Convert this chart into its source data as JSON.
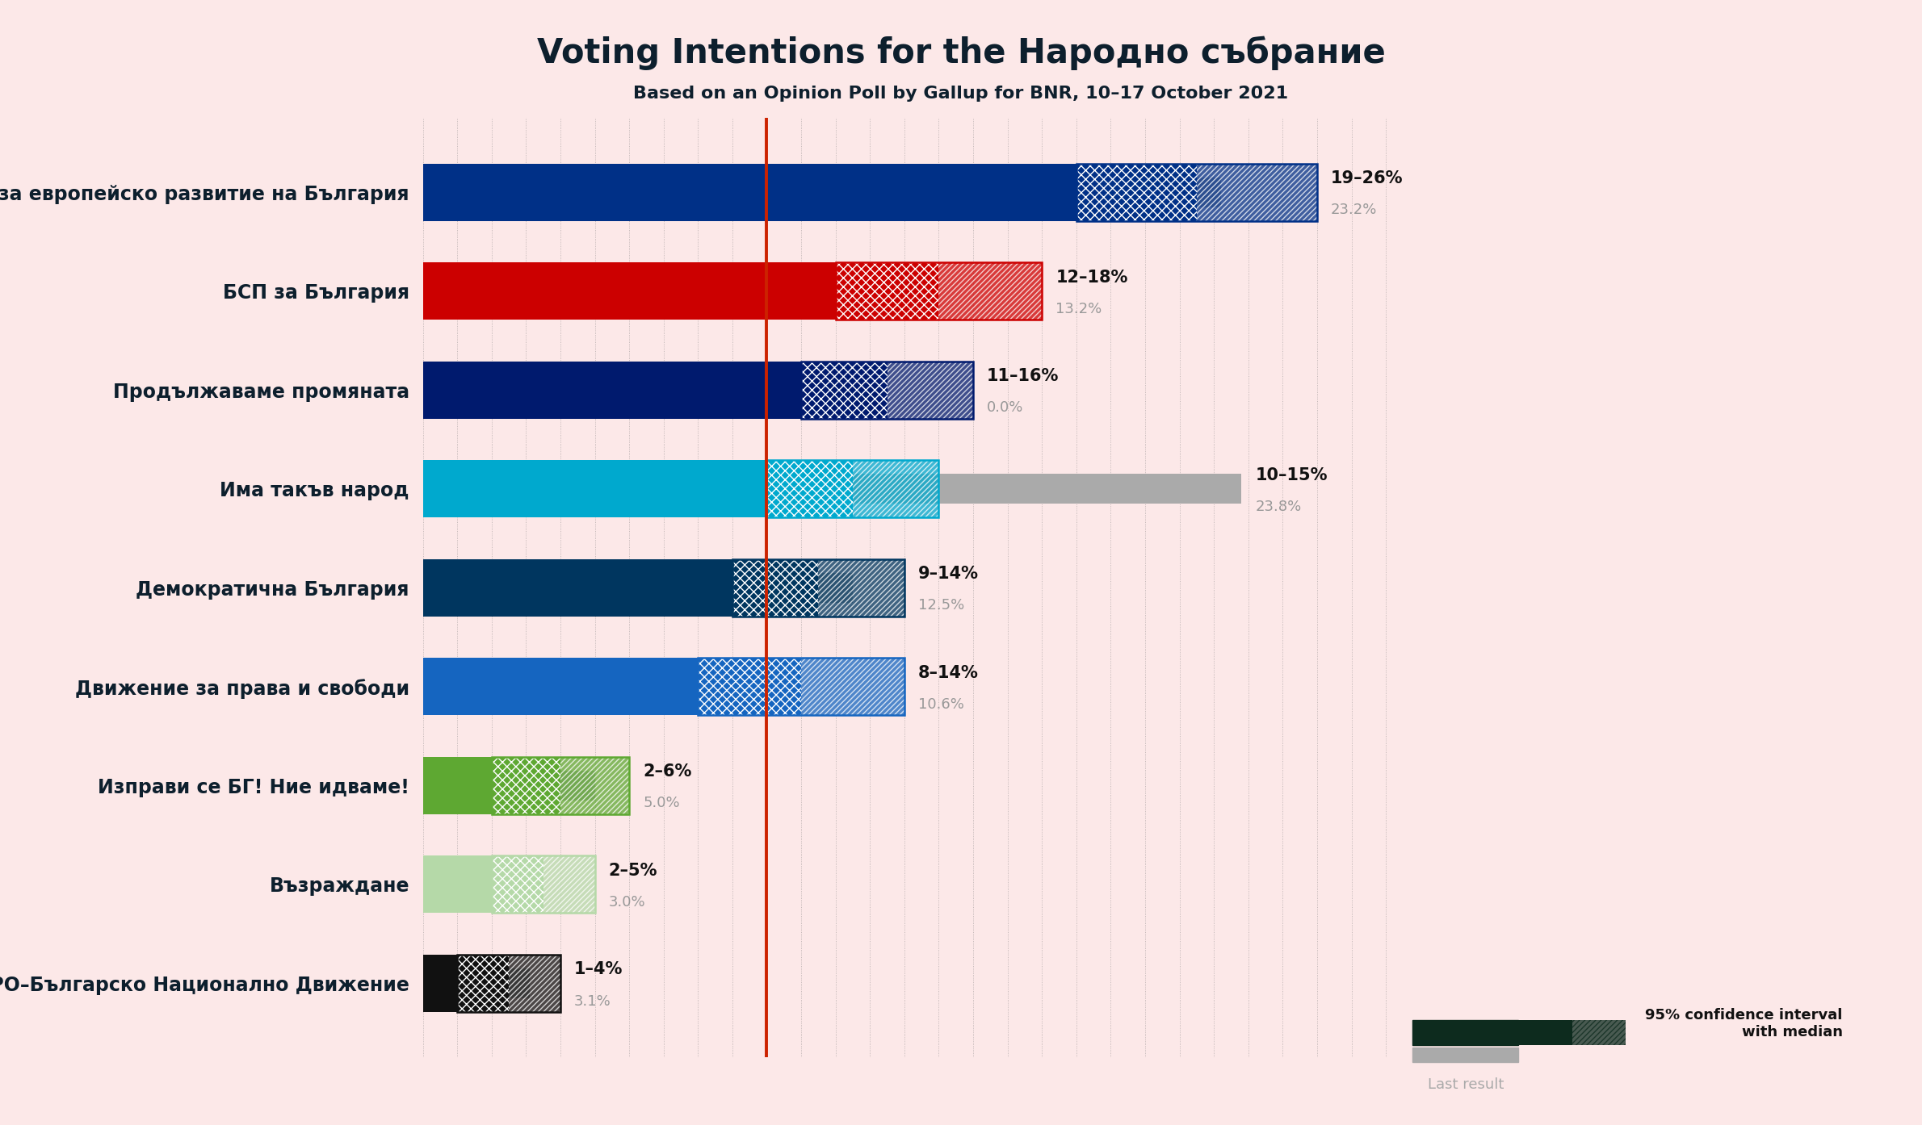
{
  "title": "Voting Intentions for the Народно събрание",
  "subtitle": "Based on an Opinion Poll by Gallup for BNR, 10–17 October 2021",
  "background_color": "#fce8e8",
  "parties": [
    "Граждани за европейско развитие на България",
    "БСП за България",
    "Продължаваме промяната",
    "Има такъв народ",
    "Демократична България",
    "Движение за права и свободи",
    "Изправи се БГ! Ние идваме!",
    "Възраждане",
    "ВМРО–Българско Национално Движение"
  ],
  "ci_low": [
    19,
    12,
    11,
    10,
    9,
    8,
    2,
    2,
    1
  ],
  "ci_high": [
    26,
    18,
    16,
    15,
    14,
    14,
    6,
    5,
    4
  ],
  "median": [
    22.5,
    15.0,
    13.5,
    12.5,
    11.5,
    11.0,
    4.0,
    3.5,
    2.5
  ],
  "last_result": [
    23.2,
    13.2,
    0.0,
    23.8,
    12.5,
    10.6,
    5.0,
    3.0,
    3.1
  ],
  "range_labels": [
    "19–26%",
    "12–18%",
    "11–16%",
    "10–15%",
    "9–14%",
    "8–14%",
    "2–6%",
    "2–5%",
    "1–4%"
  ],
  "last_labels": [
    "23.2%",
    "13.2%",
    "0.0%",
    "23.8%",
    "12.5%",
    "10.6%",
    "5.0%",
    "3.0%",
    "3.1%"
  ],
  "colors": [
    "#003087",
    "#cc0000",
    "#001a6e",
    "#00a9ce",
    "#00365f",
    "#1565c0",
    "#5ea832",
    "#b5d9a8",
    "#111111"
  ],
  "last_result_color": "#aaaaaa",
  "red_line_x": 10.0,
  "xlim_max": 28.5
}
